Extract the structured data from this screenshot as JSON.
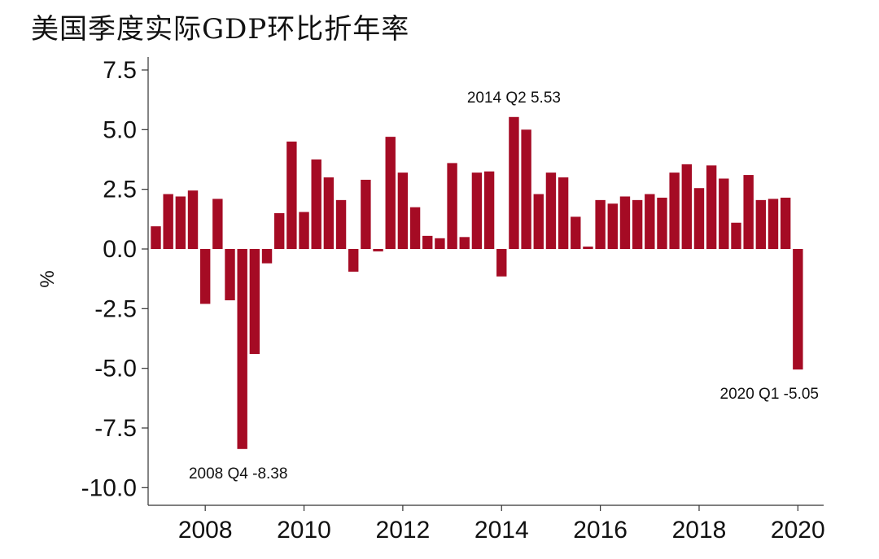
{
  "chart_data": {
    "type": "bar",
    "title": "美国季度实际GDP环比折年率",
    "ylabel": "%",
    "xlabel": "",
    "ylim": [
      -10.7,
      8.0
    ],
    "yticks": [
      7.5,
      5.0,
      2.5,
      0.0,
      -2.5,
      -5.0,
      -7.5,
      -10.0
    ],
    "ytick_labels": [
      "7.5",
      "5.0",
      "2.5",
      "0.0",
      "-2.5",
      "-5.0",
      "-7.5",
      "-10.0"
    ],
    "xtick_labels": [
      "2008",
      "2010",
      "2012",
      "2014",
      "2016",
      "2018",
      "2020"
    ],
    "grid": false,
    "bar_color": "#a50b24",
    "categories": [
      "2007 Q1",
      "2007 Q2",
      "2007 Q3",
      "2007 Q4",
      "2008 Q1",
      "2008 Q2",
      "2008 Q3",
      "2008 Q4",
      "2009 Q1",
      "2009 Q2",
      "2009 Q3",
      "2009 Q4",
      "2010 Q1",
      "2010 Q2",
      "2010 Q3",
      "2010 Q4",
      "2011 Q1",
      "2011 Q2",
      "2011 Q3",
      "2011 Q4",
      "2012 Q1",
      "2012 Q2",
      "2012 Q3",
      "2012 Q4",
      "2013 Q1",
      "2013 Q2",
      "2013 Q3",
      "2013 Q4",
      "2014 Q1",
      "2014 Q2",
      "2014 Q3",
      "2014 Q4",
      "2015 Q1",
      "2015 Q2",
      "2015 Q3",
      "2015 Q4",
      "2016 Q1",
      "2016 Q2",
      "2016 Q3",
      "2016 Q4",
      "2017 Q1",
      "2017 Q2",
      "2017 Q3",
      "2017 Q4",
      "2018 Q1",
      "2018 Q2",
      "2018 Q3",
      "2018 Q4",
      "2019 Q1",
      "2019 Q2",
      "2019 Q3",
      "2019 Q4",
      "2020 Q1"
    ],
    "values": [
      0.95,
      2.3,
      2.2,
      2.45,
      -2.3,
      2.1,
      -2.15,
      -8.38,
      -4.4,
      -0.6,
      1.5,
      4.5,
      1.55,
      3.75,
      3.0,
      2.05,
      -0.95,
      2.9,
      -0.1,
      4.7,
      3.2,
      1.75,
      0.55,
      0.45,
      3.6,
      0.5,
      3.2,
      3.25,
      -1.15,
      5.53,
      5.0,
      2.3,
      3.2,
      3.0,
      1.35,
      0.1,
      2.05,
      1.9,
      2.2,
      2.05,
      2.3,
      2.15,
      3.2,
      3.55,
      2.55,
      3.5,
      2.95,
      1.1,
      3.1,
      2.05,
      2.1,
      2.15,
      -5.05
    ],
    "annotations": [
      {
        "index": 7,
        "text": "2008 Q4 -8.38",
        "position": "below"
      },
      {
        "index": 29,
        "text": "2014 Q2 5.53",
        "position": "above"
      },
      {
        "index": 52,
        "text": "2020 Q1 -5.05",
        "position": "below"
      }
    ]
  }
}
